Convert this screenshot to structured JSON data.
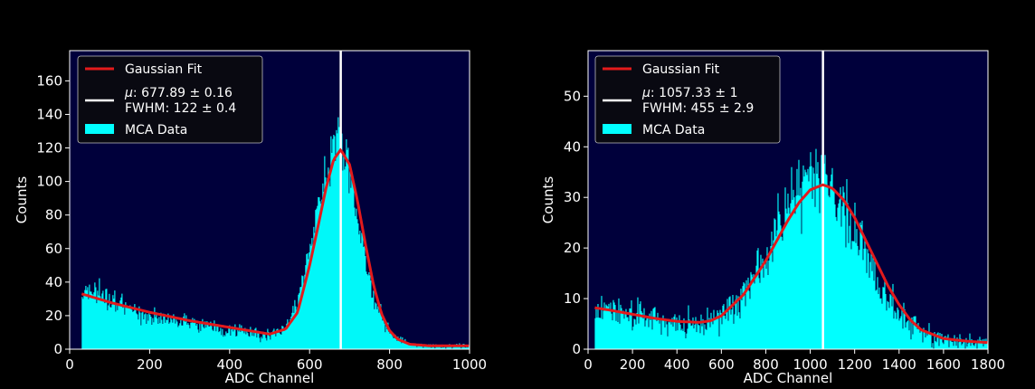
{
  "chart_data": [
    {
      "type": "bar",
      "xlabel": "ADC Channel",
      "ylabel": "Counts",
      "xlim": [
        0,
        1000
      ],
      "ylim": [
        0,
        178
      ],
      "xticks": [
        0,
        200,
        400,
        600,
        800,
        1000
      ],
      "yticks": [
        0,
        20,
        40,
        60,
        80,
        100,
        120,
        140,
        160
      ],
      "grid": false,
      "legend_position": "top-left",
      "background_color": "#00003b",
      "histogram": {
        "name": "MCA Data",
        "color": "#00ffff",
        "x_start": 30,
        "x_end": 1000,
        "x": [
          30,
          50,
          100,
          150,
          200,
          250,
          300,
          350,
          400,
          450,
          500,
          530,
          560,
          580,
          600,
          620,
          640,
          660,
          670,
          680,
          700,
          720,
          740,
          760,
          780,
          800,
          820,
          840,
          860,
          900,
          950,
          1000
        ],
        "y": [
          36,
          36,
          28,
          24,
          20,
          17,
          15,
          13,
          11,
          10,
          8,
          12,
          22,
          40,
          60,
          85,
          105,
          125,
          128,
          120,
          105,
          75,
          50,
          30,
          18,
          10,
          6,
          4,
          3,
          2,
          2,
          2
        ]
      },
      "fit": {
        "name": "Gaussian Fit",
        "color": "#e31a1c",
        "x": [
          30,
          100,
          200,
          300,
          400,
          500,
          540,
          570,
          600,
          620,
          640,
          660,
          677.89,
          700,
          720,
          740,
          760,
          780,
          800,
          820,
          850,
          900,
          1000
        ],
        "y": [
          33,
          28,
          22,
          17,
          13,
          9,
          12,
          22,
          50,
          72,
          95,
          113,
          119,
          110,
          88,
          62,
          38,
          21,
          11,
          6,
          3,
          2,
          2
        ]
      },
      "mean_line": {
        "x": 677.89,
        "color": "#ffffff"
      },
      "legend": {
        "fit_label": "Gaussian Fit",
        "mu_symbol": "μ",
        "mu_value": ": 677.89 ± 0.16",
        "fwhm_text": "FWHM: 122 ± 0.4",
        "data_label": "MCA Data"
      }
    },
    {
      "type": "bar",
      "xlabel": "ADC Channel",
      "ylabel": "Counts",
      "xlim": [
        0,
        1800
      ],
      "ylim": [
        0,
        59
      ],
      "xticks": [
        0,
        200,
        400,
        600,
        800,
        1000,
        1200,
        1400,
        1600,
        1800
      ],
      "yticks": [
        0,
        10,
        20,
        30,
        40,
        50
      ],
      "grid": false,
      "legend_position": "top-left",
      "background_color": "#00003b",
      "histogram": {
        "name": "MCA Data",
        "color": "#00ffff",
        "x_start": 30,
        "x_end": 1800,
        "x": [
          30,
          100,
          200,
          300,
          400,
          500,
          600,
          700,
          800,
          850,
          900,
          950,
          1000,
          1050,
          1100,
          1150,
          1200,
          1250,
          1300,
          1350,
          1400,
          1450,
          1500,
          1600,
          1700,
          1800
        ],
        "y": [
          8,
          8,
          7,
          6,
          5.5,
          5.5,
          7,
          11,
          19,
          24,
          28,
          31,
          33,
          33,
          31,
          28,
          24,
          19,
          14,
          10,
          7,
          5,
          3.5,
          2,
          1.5,
          1.2
        ]
      },
      "fit": {
        "name": "Gaussian Fit",
        "color": "#e31a1c",
        "x": [
          30,
          100,
          200,
          300,
          400,
          500,
          550,
          600,
          700,
          800,
          850,
          900,
          950,
          1000,
          1057.33,
          1100,
          1150,
          1200,
          1250,
          1300,
          1350,
          1400,
          1450,
          1500,
          1600,
          1700,
          1800
        ],
        "y": [
          8.2,
          7.7,
          6.9,
          6.1,
          5.5,
          5.3,
          5.6,
          6.6,
          10.8,
          17.5,
          21.5,
          25.5,
          29,
          31.5,
          32.5,
          31.8,
          29.5,
          26,
          21.5,
          17,
          12.5,
          8.8,
          5.8,
          3.8,
          2.1,
          1.6,
          1.3
        ]
      },
      "mean_line": {
        "x": 1057.33,
        "color": "#ffffff"
      },
      "legend": {
        "fit_label": "Gaussian Fit",
        "mu_symbol": "μ",
        "mu_value": ": 1057.33 ± 1",
        "fwhm_text": "FWHM: 455 ± 2.9",
        "data_label": "MCA Data"
      }
    }
  ]
}
